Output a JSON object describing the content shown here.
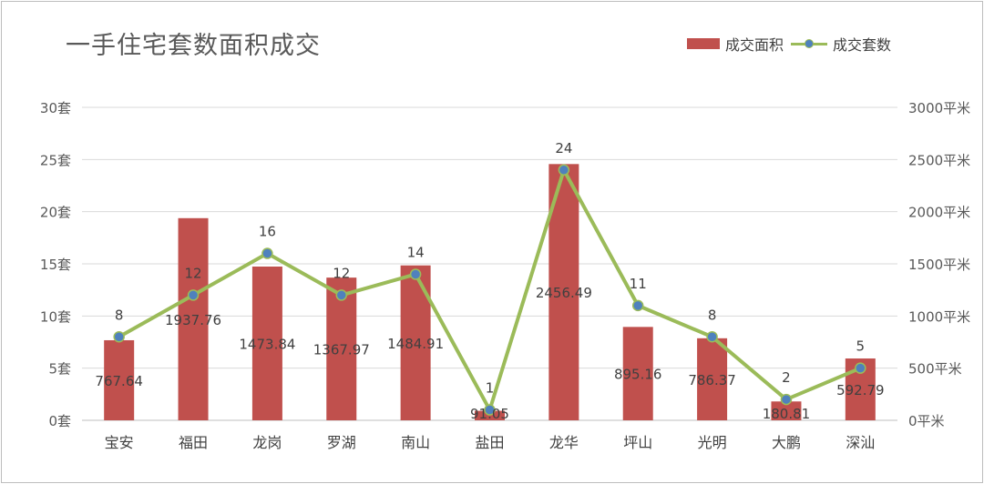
{
  "chart_data": {
    "type": "bar+line",
    "title": "一手住宅套数面积成交",
    "categories": [
      "宝安",
      "福田",
      "龙岗",
      "罗湖",
      "南山",
      "盐田",
      "龙华",
      "坪山",
      "光明",
      "大鹏",
      "深汕"
    ],
    "series": [
      {
        "name": "成交面积",
        "type": "bar",
        "axis": "right",
        "values": [
          767.64,
          1937.76,
          1473.84,
          1367.97,
          1484.91,
          91.05,
          2456.49,
          895.16,
          786.37,
          180.81,
          592.79
        ],
        "labels": [
          "767.64",
          "1937.76",
          "1473.84",
          "1367.97",
          "1484.91",
          "91.05",
          "2456.49",
          "895.16",
          "786.37",
          "180.81",
          "592.79"
        ],
        "color": "#c0504d"
      },
      {
        "name": "成交套数",
        "type": "line",
        "axis": "left",
        "values": [
          8,
          12,
          16,
          12,
          14,
          1,
          24,
          11,
          8,
          2,
          5
        ],
        "labels": [
          "8",
          "12",
          "16",
          "12",
          "14",
          "1",
          "24",
          "11",
          "8",
          "2",
          "5"
        ],
        "color": "#9bbb59",
        "marker_color": "#4f81bd"
      }
    ],
    "y_left": {
      "min": 0,
      "max": 30,
      "ticks": [
        "0套",
        "5套",
        "10套",
        "15套",
        "20套",
        "25套",
        "30套"
      ]
    },
    "y_right": {
      "min": 0,
      "max": 3000,
      "ticks": [
        "0平米",
        "500平米",
        "1000平米",
        "1500平米",
        "2000平米",
        "2500平米",
        "3000平米"
      ]
    },
    "grid": true,
    "legend_position": "top-right"
  }
}
